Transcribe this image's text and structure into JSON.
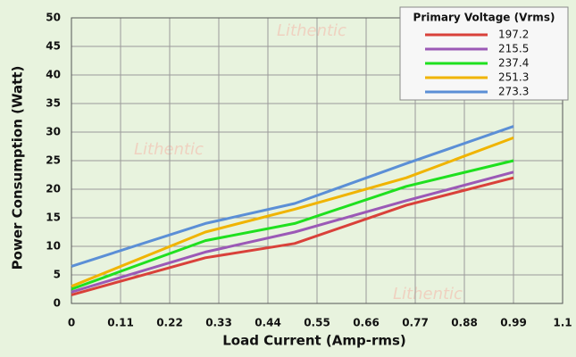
{
  "chart_data": {
    "type": "line",
    "xlabel": "Load Current (Amp-rms)",
    "ylabel": "Power Consumption (Watt)",
    "watermark": "Lithentic",
    "legend_title": "Primary Voltage (Vrms)",
    "legend_position": "upper right",
    "grid": true,
    "x": [
      0,
      0.3,
      0.5,
      0.75,
      0.99
    ],
    "xlim": [
      0,
      1.1
    ],
    "xticks": [
      0,
      0.11,
      0.22,
      0.33,
      0.44,
      0.55,
      0.66,
      0.77,
      0.88,
      0.99,
      1.1
    ],
    "ylim": [
      0,
      50
    ],
    "yticks": [
      0,
      5,
      10,
      15,
      20,
      25,
      30,
      35,
      40,
      45,
      50
    ],
    "series": [
      {
        "name": "197.2",
        "color": "#d9413a",
        "values": [
          1.5,
          8,
          10.5,
          17.2,
          22
        ]
      },
      {
        "name": "215.5",
        "color": "#9b59b6",
        "values": [
          2,
          9,
          12.5,
          18,
          23
        ]
      },
      {
        "name": "237.4",
        "color": "#1fe01f",
        "values": [
          2.5,
          11,
          14,
          20.5,
          25
        ]
      },
      {
        "name": "251.3",
        "color": "#f0b400",
        "values": [
          3,
          12.5,
          16.5,
          22,
          29
        ]
      },
      {
        "name": "273.3",
        "color": "#5b8fd6",
        "values": [
          6.5,
          14,
          17.5,
          24.5,
          31
        ]
      }
    ]
  }
}
